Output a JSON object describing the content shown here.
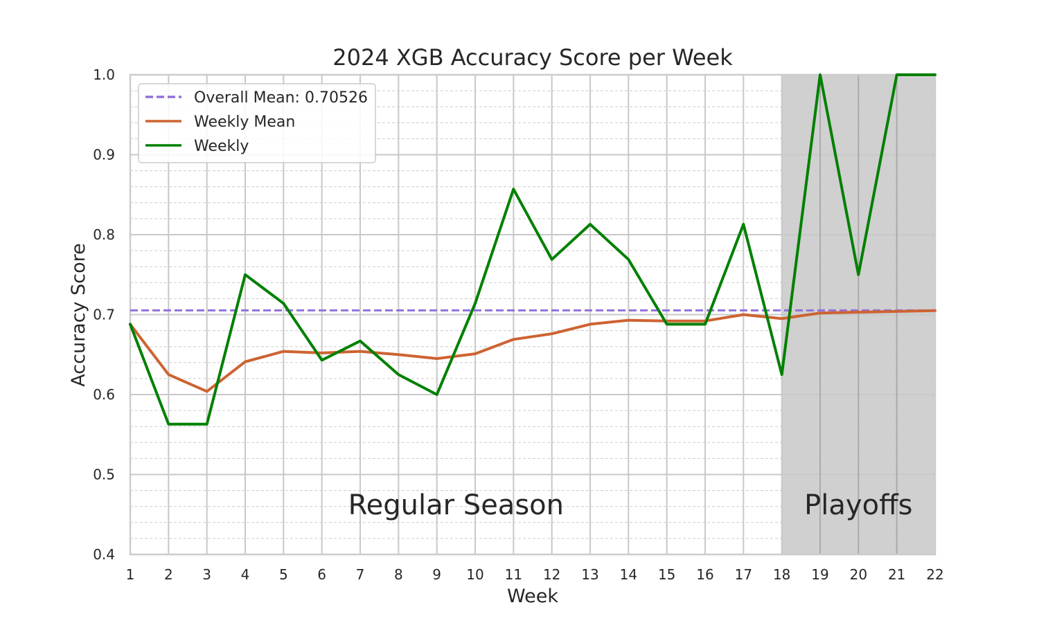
{
  "chart_data": {
    "type": "line",
    "title": "2024 XGB Accuracy Score per Week",
    "xlabel": "Week",
    "ylabel": "Accuracy Score",
    "xlim": [
      1,
      22
    ],
    "ylim": [
      0.4,
      1.0
    ],
    "x": [
      1,
      2,
      3,
      4,
      5,
      6,
      7,
      8,
      9,
      10,
      11,
      12,
      13,
      14,
      15,
      16,
      17,
      18,
      19,
      20,
      21,
      22
    ],
    "x_ticks": [
      "1",
      "2",
      "3",
      "4",
      "5",
      "6",
      "7",
      "8",
      "9",
      "10",
      "11",
      "12",
      "13",
      "14",
      "15",
      "16",
      "17",
      "18",
      "19",
      "20",
      "21",
      "22"
    ],
    "y_ticks": [
      "0.4",
      "0.5",
      "0.6",
      "0.7",
      "0.8",
      "0.9",
      "1.0"
    ],
    "grid": true,
    "minor_grid": true,
    "legend_position": "top-left",
    "overall_mean": {
      "label": "Overall Mean: 0.70526",
      "value": 0.70526,
      "color": "#9370db",
      "style": "dashed"
    },
    "series": [
      {
        "name": "Weekly Mean",
        "color": "#cd6332",
        "values": [
          0.688,
          0.625,
          0.604,
          0.641,
          0.654,
          0.652,
          0.654,
          0.65,
          0.645,
          0.651,
          0.669,
          0.676,
          0.688,
          0.693,
          0.692,
          0.692,
          0.7,
          0.695,
          0.702,
          0.703,
          0.704,
          0.705
        ]
      },
      {
        "name": "Weekly",
        "color": "#008000",
        "values": [
          0.688,
          0.563,
          0.563,
          0.75,
          0.714,
          0.643,
          0.667,
          0.625,
          0.6,
          0.714,
          0.857,
          0.769,
          0.813,
          0.769,
          0.688,
          0.688,
          0.813,
          0.625,
          1.0,
          0.75,
          1.0,
          1.0
        ]
      }
    ],
    "regions": [
      {
        "label": "Regular Season",
        "from": 1,
        "to": 18,
        "shaded": false
      },
      {
        "label": "Playoffs",
        "from": 18,
        "to": 22,
        "shaded": true,
        "color": "#d0d0d0"
      }
    ]
  }
}
